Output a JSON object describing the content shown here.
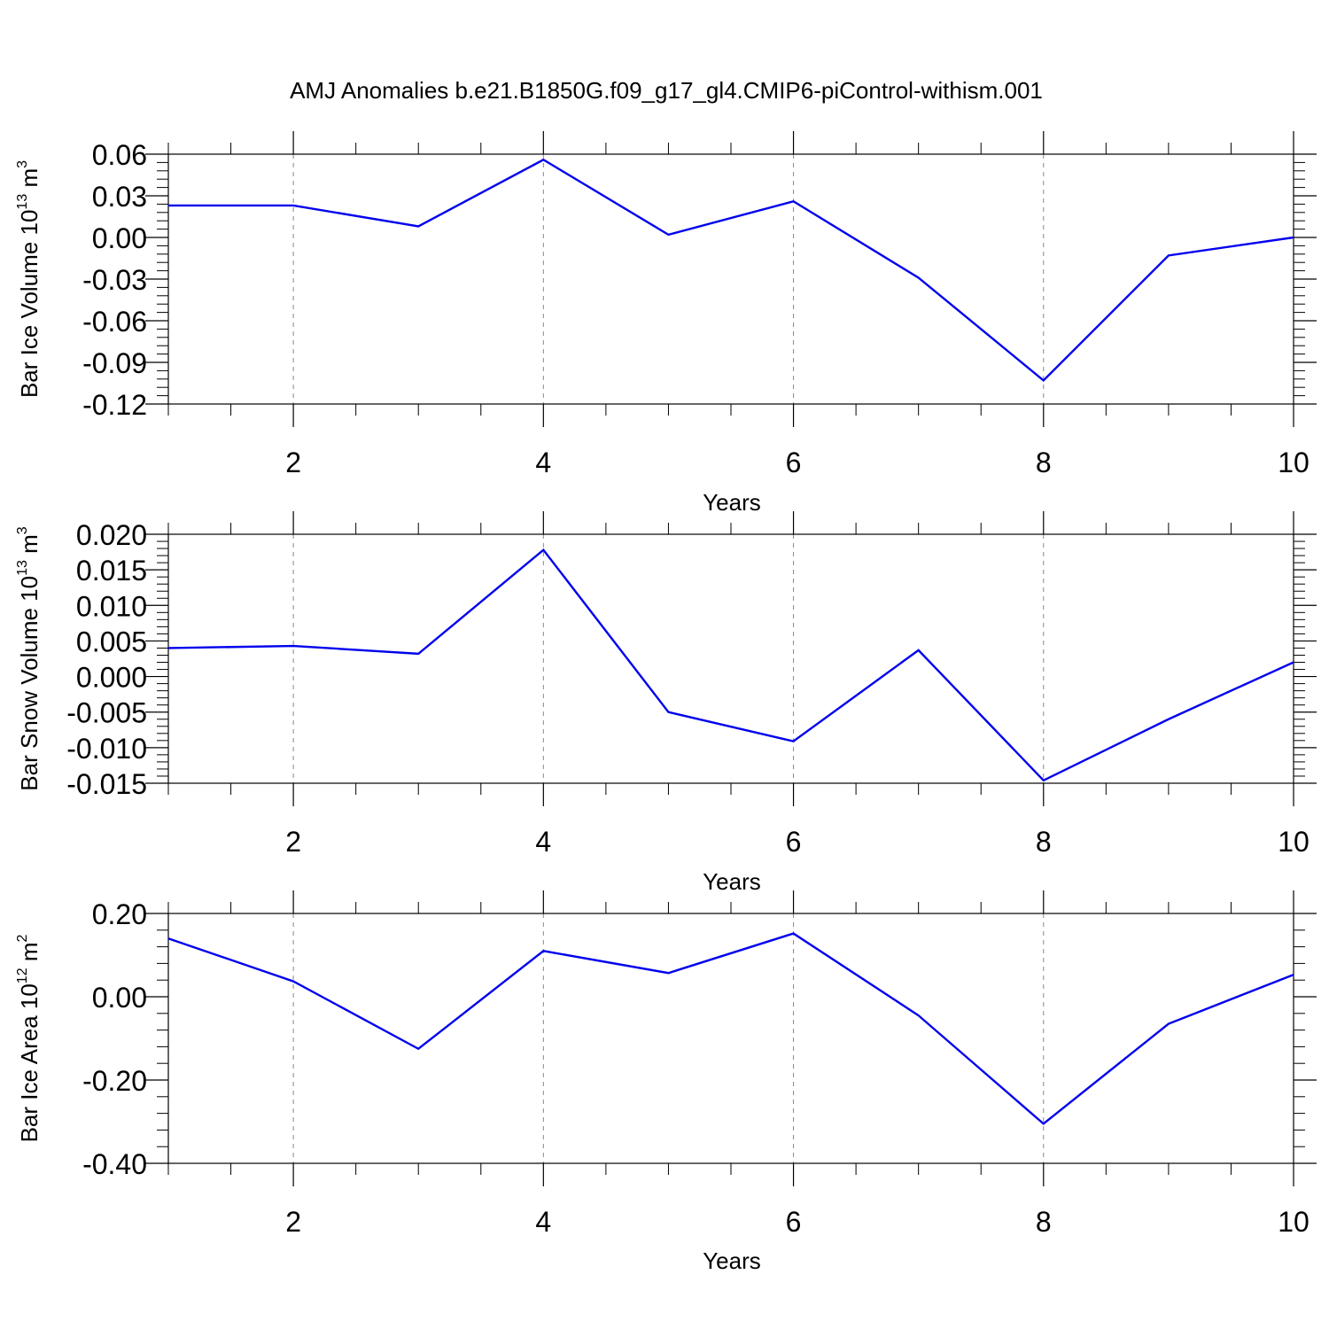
{
  "chart_data": {
    "title": "AMJ Anomalies b.e21.B1850G.f09_g17_gl4.CMIP6-piControl-withism.001",
    "line_color": "#0000ee",
    "grid_color": "#888888",
    "panels": [
      {
        "type": "line",
        "ylabel": {
          "base": "Bar Ice Volume 10",
          "exp": "13",
          "unit": " m",
          "unit_exp": "3"
        },
        "xlabel": "Years",
        "xlim": [
          1,
          10
        ],
        "ylim": [
          -0.12,
          0.06
        ],
        "x_ticks": [
          2,
          4,
          6,
          8,
          10
        ],
        "y_ticks": [
          "0.06",
          "0.03",
          "0.00",
          "-0.03",
          "-0.06",
          "-0.09",
          "-0.12"
        ],
        "y_tick_values": [
          0.06,
          0.03,
          0.0,
          -0.03,
          -0.06,
          -0.09,
          -0.12
        ],
        "vgrid": [
          2,
          4,
          6,
          8
        ],
        "x": [
          1,
          2,
          3,
          4,
          5,
          6,
          7,
          8,
          9,
          10
        ],
        "values": [
          0.023,
          0.023,
          0.008,
          0.056,
          0.002,
          0.026,
          -0.029,
          -0.103,
          -0.013,
          0.0
        ]
      },
      {
        "type": "line",
        "ylabel": {
          "base": "Bar Snow Volume 10",
          "exp": "13",
          "unit": " m",
          "unit_exp": "3"
        },
        "xlabel": "Years",
        "xlim": [
          1,
          10
        ],
        "ylim": [
          -0.015,
          0.02
        ],
        "x_ticks": [
          2,
          4,
          6,
          8,
          10
        ],
        "y_ticks": [
          "0.020",
          "0.015",
          "0.010",
          "0.005",
          "0.000",
          "-0.005",
          "-0.010",
          "-0.015"
        ],
        "y_tick_values": [
          0.02,
          0.015,
          0.01,
          0.005,
          0.0,
          -0.005,
          -0.01,
          -0.015
        ],
        "vgrid": [
          2,
          4,
          6,
          8
        ],
        "x": [
          1,
          2,
          3,
          4,
          5,
          6,
          7,
          8,
          9,
          10
        ],
        "values": [
          0.004,
          0.0043,
          0.0032,
          0.0178,
          -0.005,
          -0.0091,
          0.0037,
          -0.0146,
          -0.006,
          0.002
        ]
      },
      {
        "type": "line",
        "ylabel": {
          "base": "Bar Ice Area 10",
          "exp": "12",
          "unit": " m",
          "unit_exp": "2"
        },
        "xlabel": "Years",
        "xlim": [
          1,
          10
        ],
        "ylim": [
          -0.4,
          0.2
        ],
        "x_ticks": [
          2,
          4,
          6,
          8,
          10
        ],
        "y_ticks": [
          "0.20",
          "0.00",
          "-0.20",
          "-0.40"
        ],
        "y_tick_values": [
          0.2,
          0.0,
          -0.2,
          -0.4
        ],
        "vgrid": [
          2,
          4,
          6,
          8
        ],
        "x": [
          1,
          2,
          3,
          4,
          5,
          6,
          7,
          8,
          9,
          10
        ],
        "values": [
          0.14,
          0.037,
          -0.125,
          0.11,
          0.057,
          0.152,
          -0.045,
          -0.305,
          -0.065,
          0.053
        ]
      }
    ]
  }
}
